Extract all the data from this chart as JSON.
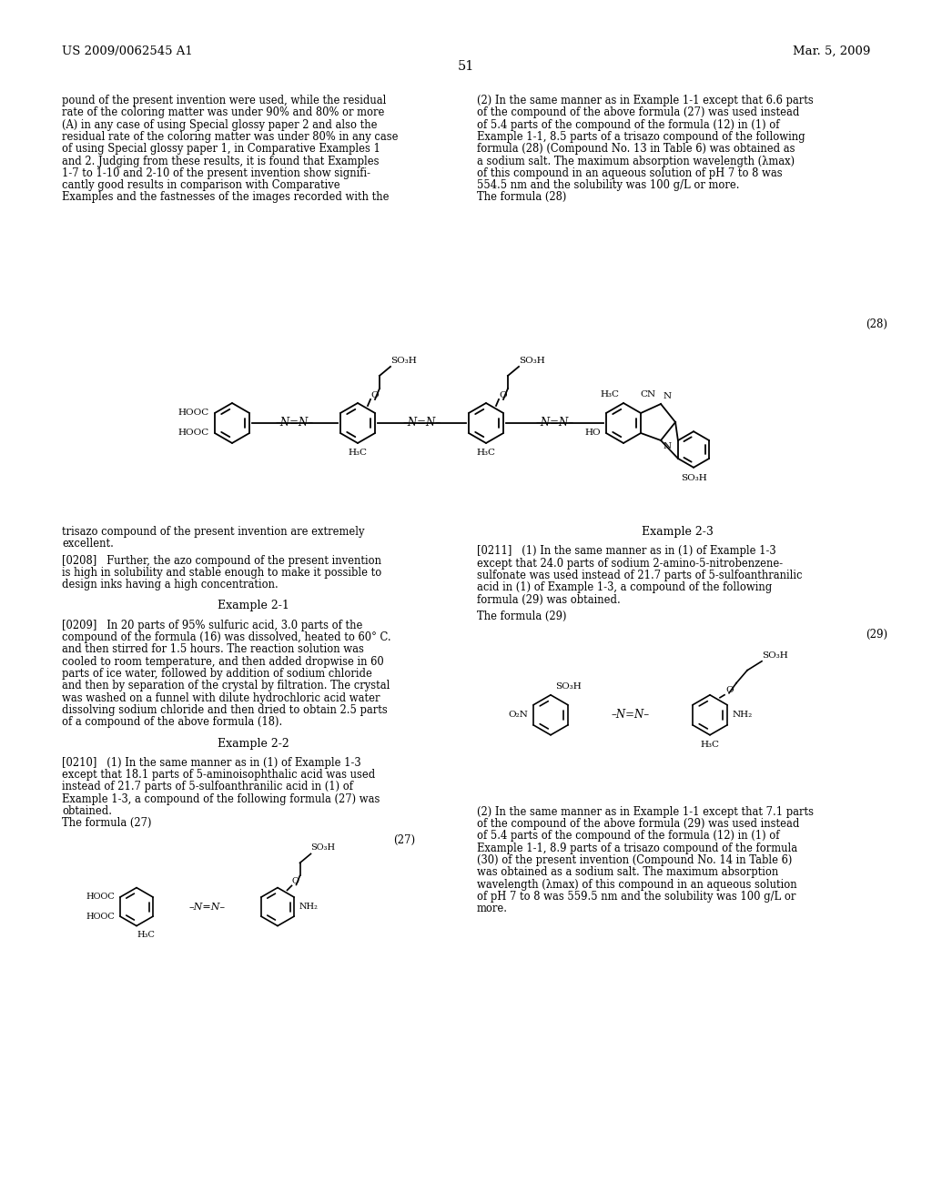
{
  "page_width": 10.24,
  "page_height": 13.2,
  "bg_color": "#ffffff",
  "header_left": "US 2009/0062545 A1",
  "header_right": "Mar. 5, 2009",
  "page_number": "51",
  "col1_lines": [
    "pound of the present invention were used, while the residual",
    "rate of the coloring matter was under 90% and 80% or more",
    "(A) in any case of using Special glossy paper 2 and also the",
    "residual rate of the coloring matter was under 80% in any case",
    "of using Special glossy paper 1, in Comparative Examples 1",
    "and 2. Judging from these results, it is found that Examples",
    "1-7 to 1-10 and 2-10 of the present invention show signifi-",
    "cantly good results in comparison with Comparative",
    "Examples and the fastnesses of the images recorded with the"
  ],
  "col2_lines": [
    "(2) In the same manner as in Example 1-1 except that 6.6 parts",
    "of the compound of the above formula (27) was used instead",
    "of 5.4 parts of the compound of the formula (12) in (1) of",
    "Example 1-1, 8.5 parts of a trisazo compound of the following",
    "formula (28) (Compound No. 13 in Table 6) was obtained as",
    "a sodium salt. The maximum absorption wavelength (λmax)",
    "of this compound in an aqueous solution of pH 7 to 8 was",
    "554.5 nm and the solubility was 100 g/L or more.",
    "The formula (28)"
  ],
  "lower_col1_lines": [
    "trisazo compound of the present invention are extremely",
    "excellent."
  ],
  "para0208_line1": "[0208]   Further, the azo compound of the present invention",
  "para0208_lines": [
    "is high in solubility and stable enough to make it possible to",
    "design inks having a high concentration."
  ],
  "example21": "Example 2-1",
  "para0209_line1": "[0209]   In 20 parts of 95% sulfuric acid, 3.0 parts of the",
  "para0209_lines": [
    "compound of the formula (16) was dissolved, heated to 60° C.",
    "and then stirred for 1.5 hours. The reaction solution was",
    "cooled to room temperature, and then added dropwise in 60",
    "parts of ice water, followed by addition of sodium chloride",
    "and then by separation of the crystal by filtration. The crystal",
    "was washed on a funnel with dilute hydrochloric acid water",
    "dissolving sodium chloride and then dried to obtain 2.5 parts",
    "of a compound of the above formula (18)."
  ],
  "example22": "Example 2-2",
  "para0210_line1": "[0210]   (1) In the same manner as in (1) of Example 1-3",
  "para0210_lines": [
    "except that 18.1 parts of 5-aminoisophthalic acid was used",
    "instead of 21.7 parts of 5-sulfoanthranilic acid in (1) of",
    "Example 1-3, a compound of the following formula (27) was",
    "obtained.",
    "The formula (27)"
  ],
  "example23": "Example 2-3",
  "para0211_line1": "[0211]   (1) In the same manner as in (1) of Example 1-3",
  "para0211_lines": [
    "except that 24.0 parts of sodium 2-amino-5-nitrobenzene-",
    "sulfonate was used instead of 21.7 parts of 5-sulfoanthranilic",
    "acid in (1) of Example 1-3, a compound of the following",
    "formula (29) was obtained."
  ],
  "formula29_text": "The formula (29)",
  "lower_col2_lines": [
    "(2) In the same manner as in Example 1-1 except that 7.1 parts",
    "of the compound of the above formula (29) was used instead",
    "of 5.4 parts of the compound of the formula (12) in (1) of",
    "Example 1-1, 8.9 parts of a trisazo compound of the formula",
    "(30) of the present invention (Compound No. 14 in Table 6)",
    "was obtained as a sodium salt. The maximum absorption",
    "wavelength (λmax) of this compound in an aqueous solution",
    "of pH 7 to 8 was 559.5 nm and the solubility was 100 g/L or",
    "more."
  ]
}
